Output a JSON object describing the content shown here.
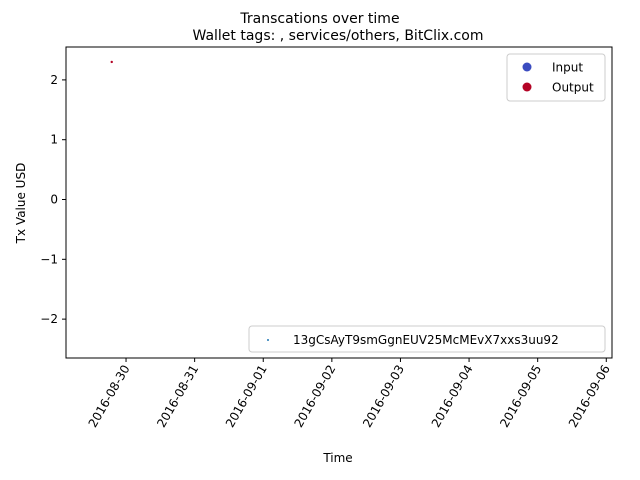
{
  "chart_data": {
    "type": "scatter",
    "suptitle": "Transcations over time",
    "title": "Wallet tags: , services/others, BitClix.com",
    "xlabel": "Time",
    "ylabel": "Tx Value USD",
    "x_ticks": [
      "2016-08-30",
      "2016-08-31",
      "2016-09-01",
      "2016-09-02",
      "2016-09-03",
      "2016-09-04",
      "2016-09-05",
      "2016-09-06"
    ],
    "x_range": [
      "2016-08-29 03:00",
      "2016-09-06 02:00"
    ],
    "y_ticks": [
      2,
      1,
      0,
      -1,
      -2
    ],
    "y_tick_labels": [
      "2",
      "1",
      "0",
      "−1",
      "−2"
    ],
    "ylim": [
      -2.65,
      2.55
    ],
    "grid": false,
    "points": [
      {
        "x": "2016-08-29 19:00",
        "y": 2.3,
        "series": "Output"
      }
    ],
    "legend_type": {
      "placement": "upper right",
      "entries": [
        {
          "label": "Input",
          "color": "#3b4cc0"
        },
        {
          "label": "Output",
          "color": "#b40426"
        }
      ]
    },
    "legend_wallet": {
      "placement": "lower right",
      "entries": [
        {
          "label": "13gCsAyT9smGgnEUV25McMEvX7xxs3uu92",
          "color": "#1f77b4"
        }
      ]
    }
  }
}
